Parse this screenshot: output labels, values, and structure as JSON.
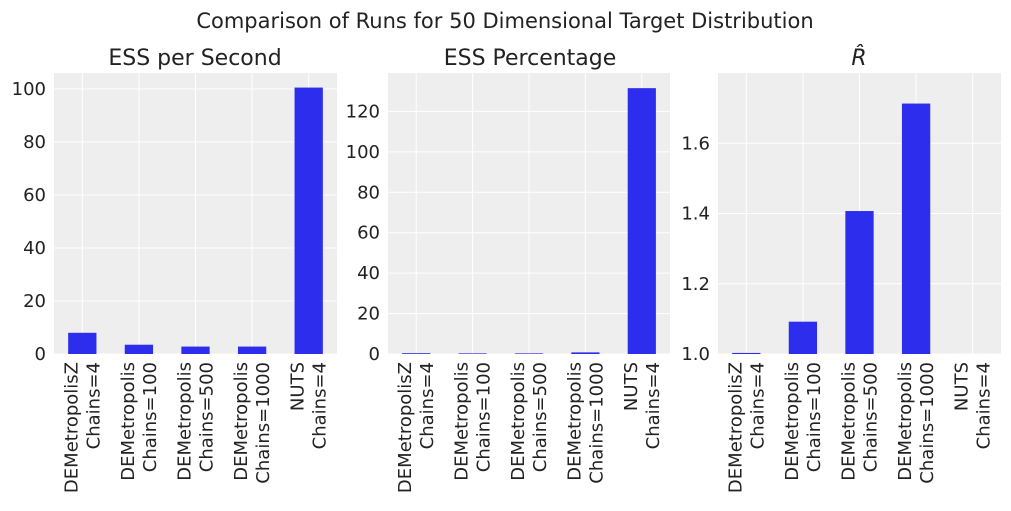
{
  "figure": {
    "suptitle": "Comparison of Runs for 50 Dimensional Target Distribution"
  },
  "colors": {
    "bar": "#2d2ded",
    "panel_bg": "#eeeeee",
    "grid": "#ffffff",
    "text": "#222222"
  },
  "chart_data": [
    {
      "type": "bar",
      "title": "ESS per Second",
      "categories": [
        [
          "DEMetropolisZ",
          "Chains=4"
        ],
        [
          "DEMetropolis",
          "Chains=100"
        ],
        [
          "DEMetropolis",
          "Chains=500"
        ],
        [
          "DEMetropolis",
          "Chains=1000"
        ],
        [
          "NUTS",
          "Chains=4"
        ]
      ],
      "values": [
        8.0,
        3.5,
        2.8,
        2.8,
        100.5
      ],
      "ylim": [
        0,
        106
      ],
      "yticks": [
        0,
        20,
        40,
        60,
        80,
        100
      ],
      "ytick_labels": [
        "0",
        "20",
        "40",
        "60",
        "80",
        "100"
      ]
    },
    {
      "type": "bar",
      "title": "ESS Percentage",
      "categories": [
        [
          "DEMetropolisZ",
          "Chains=4"
        ],
        [
          "DEMetropolis",
          "Chains=100"
        ],
        [
          "DEMetropolis",
          "Chains=500"
        ],
        [
          "DEMetropolis",
          "Chains=1000"
        ],
        [
          "NUTS",
          "Chains=4"
        ]
      ],
      "values": [
        0.4,
        0.3,
        0.3,
        0.8,
        131.5
      ],
      "ylim": [
        0,
        139
      ],
      "yticks": [
        0,
        20,
        40,
        60,
        80,
        100,
        120
      ],
      "ytick_labels": [
        "0",
        "20",
        "40",
        "60",
        "80",
        "100",
        "120"
      ]
    },
    {
      "type": "bar",
      "title": "R̂",
      "categories": [
        [
          "DEMetropolisZ",
          "Chains=4"
        ],
        [
          "DEMetropolis",
          "Chains=100"
        ],
        [
          "DEMetropolis",
          "Chains=500"
        ],
        [
          "DEMetropolis",
          "Chains=1000"
        ],
        [
          "NUTS",
          "Chains=4"
        ]
      ],
      "values": [
        1.003,
        1.092,
        1.407,
        1.713,
        1.0
      ],
      "ylim": [
        1.0,
        1.8
      ],
      "yticks": [
        1.0,
        1.2,
        1.4,
        1.6
      ],
      "ytick_labels": [
        "1.0",
        "1.2",
        "1.4",
        "1.6"
      ]
    }
  ]
}
